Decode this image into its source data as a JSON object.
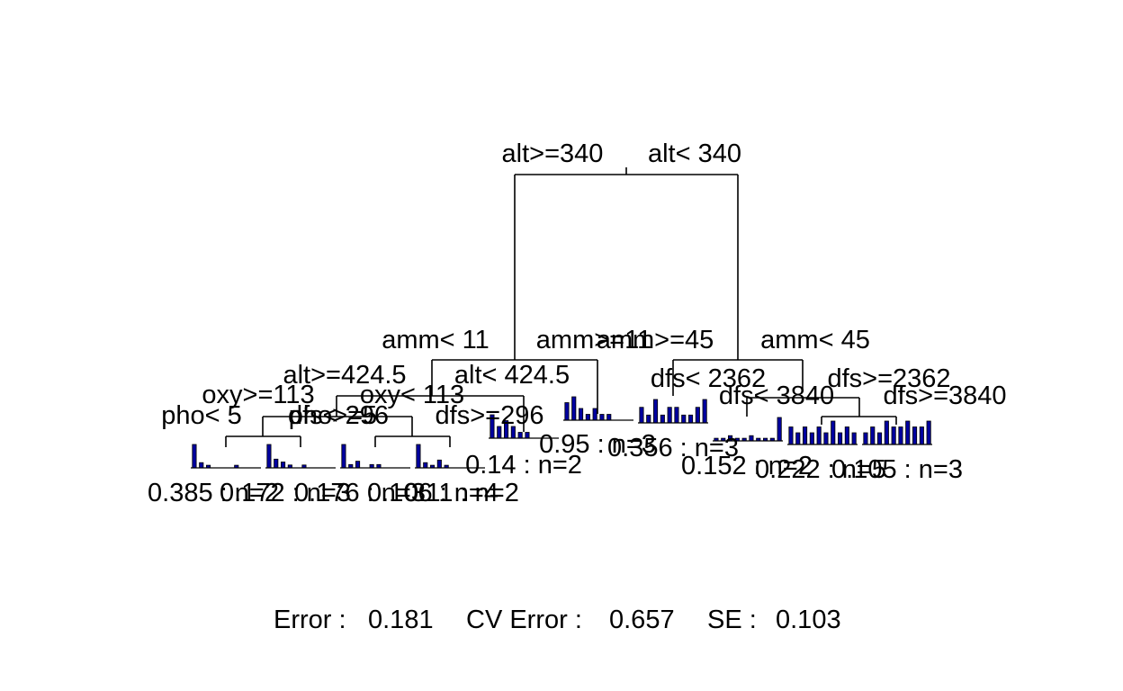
{
  "tree": {
    "split_labels": [
      "alt>=340",
      "alt< 340",
      "amm< 11",
      "amm>=11",
      "amm>=45",
      "amm< 45",
      "alt>=424.5",
      "alt< 424.5",
      "oxy>=113",
      "oxy< 113",
      "pho< 5",
      "pho>=5",
      "dfs< 296",
      "dfs>=296",
      "dfs< 2362",
      "dfs>=2362",
      "dfs< 3840",
      "dfs>=3840"
    ],
    "leaf_labels": [
      "0.385 : n=2",
      "0.172 : n=3",
      "0.176 : n=3",
      "0.106 : n=4",
      "0.11 : n=2",
      "0.14 : n=2",
      "0.95 : n=3",
      "0.356 : n=3",
      "0.152 : n=2",
      "0.222 : n=5",
      "0.105 : n=3"
    ],
    "leaf_histograms": [
      [
        9,
        2,
        1,
        0,
        0,
        0,
        1,
        0,
        0,
        0
      ],
      [
        8,
        3,
        2,
        1,
        0,
        1,
        0,
        0,
        0,
        0
      ],
      [
        7,
        1,
        2,
        0,
        1,
        1,
        0,
        0,
        0,
        0
      ],
      [
        9,
        2,
        1,
        3,
        1,
        0,
        0,
        0,
        0,
        0
      ],
      [
        4,
        2,
        3,
        2,
        1,
        1,
        0,
        0,
        0,
        0
      ],
      [
        3,
        4,
        2,
        1,
        2,
        1,
        1,
        0,
        0,
        0
      ],
      [
        2,
        1,
        3,
        1,
        2,
        2,
        1,
        1,
        2,
        3
      ],
      [
        1,
        1,
        2,
        1,
        1,
        2,
        1,
        1,
        1,
        9
      ],
      [
        3,
        2,
        3,
        2,
        3,
        2,
        4,
        2,
        3,
        2
      ],
      [
        2,
        3,
        2,
        4,
        3,
        3,
        4,
        3,
        3,
        4
      ],
      [
        1,
        2,
        2,
        2,
        3,
        2,
        3,
        3,
        3,
        3
      ]
    ]
  },
  "footer": {
    "error_label": "Error :",
    "error_value": "0.181",
    "cv_label": "CV Error :",
    "cv_value": "0.657",
    "se_label": "SE :",
    "se_value": "0.103"
  },
  "colors": {
    "bar_fill": "#0000a0",
    "line": "#000000",
    "background": "#ffffff"
  }
}
